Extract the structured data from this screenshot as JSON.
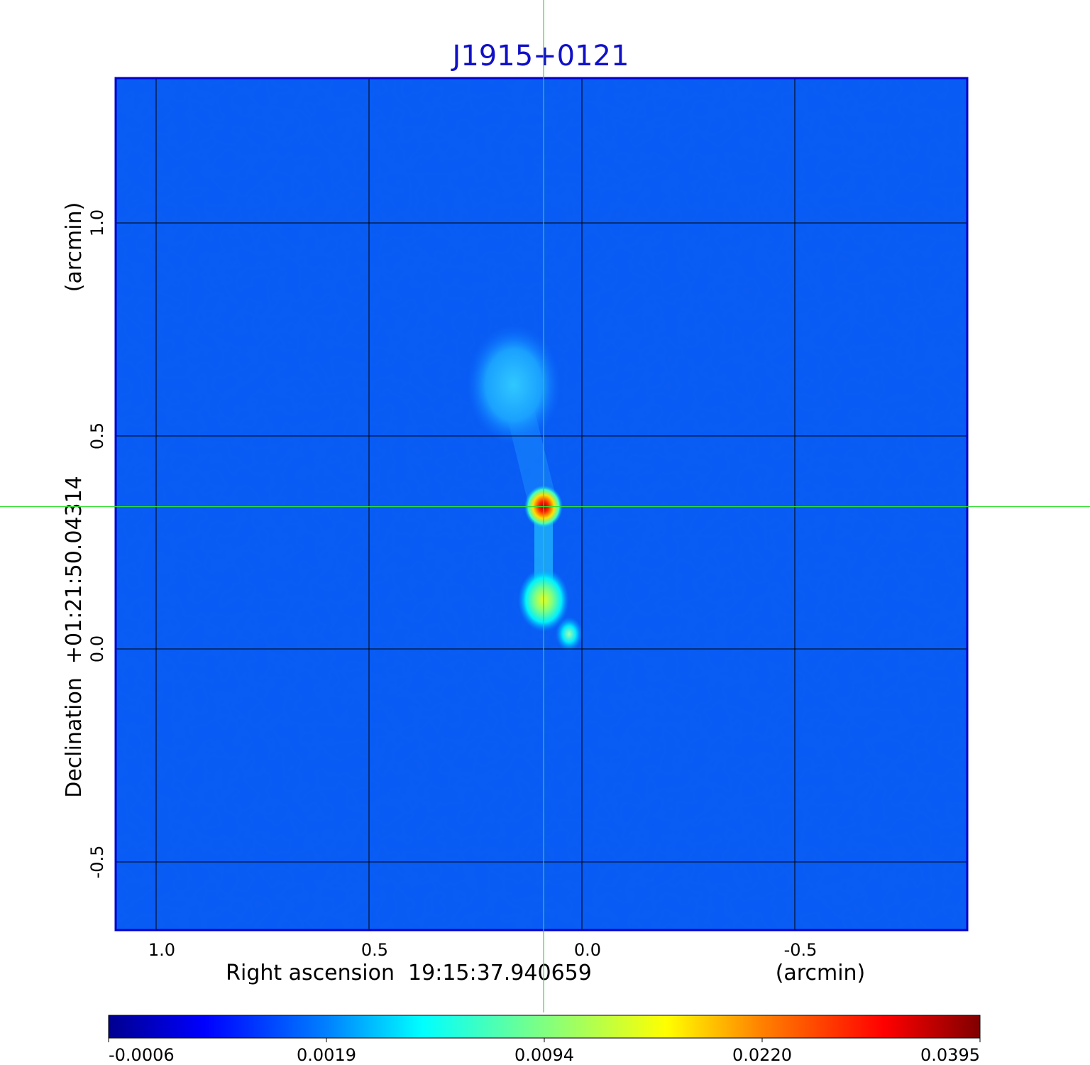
{
  "chart_data": {
    "type": "heatmap",
    "title": "J1915+0121",
    "xlabel": "Right ascension  19:15:37.940659",
    "xunit": "(arcmin)",
    "ylabel": "Declination  +01:21:50.04314",
    "yunit": "(arcmin)",
    "x_ticks": [
      "1.0",
      "0.5",
      "0.0",
      "-0.5"
    ],
    "y_ticks": [
      "1.0",
      "0.5",
      "0.0",
      "-0.5"
    ],
    "x_tick_values": [
      1.0,
      0.5,
      0.0,
      -0.5
    ],
    "y_tick_values": [
      1.0,
      0.5,
      0.0,
      -0.5
    ],
    "xlim": [
      1.095,
      -0.905
    ],
    "ylim": [
      -0.66,
      1.34
    ],
    "grid": true,
    "crosshair": [
      0.09,
      0.334
    ],
    "colorbar": {
      "ticks": [
        "-0.0006",
        "0.0019",
        "0.0094",
        "0.0220",
        "0.0395"
      ],
      "colormap": "jet"
    },
    "sources": [
      {
        "x": 0.09,
        "y": 0.334,
        "peak": 0.0395,
        "description": "core"
      },
      {
        "x": 0.09,
        "y": 0.115,
        "peak": 0.018
      },
      {
        "x": 0.03,
        "y": 0.035,
        "peak": 0.008
      },
      {
        "x": 0.16,
        "y": 0.62,
        "peak": 0.004
      }
    ]
  },
  "colors": {
    "title": "#1010c8",
    "crosshair": "#33dd33",
    "grid": "#000000",
    "frame": "#0000cc"
  }
}
